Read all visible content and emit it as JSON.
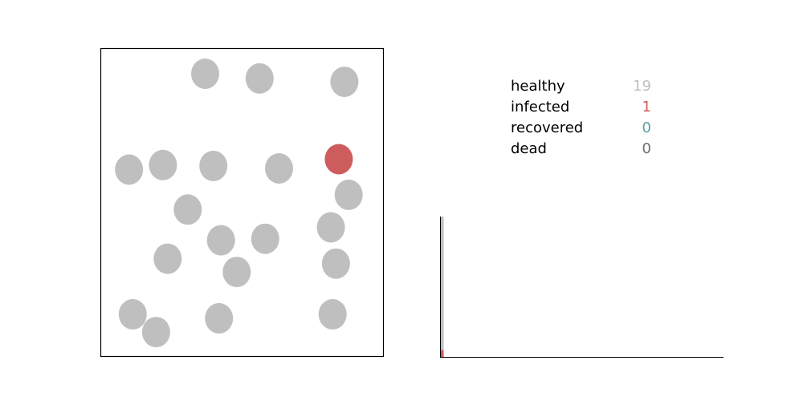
{
  "chart_data": [
    {
      "type": "scatter",
      "xlim": [
        0,
        1
      ],
      "ylim": [
        0,
        1
      ],
      "grid": false,
      "legend": "none",
      "points": [
        {
          "x": 0.369,
          "y": 0.919,
          "status": "healthy"
        },
        {
          "x": 0.562,
          "y": 0.904,
          "status": "healthy"
        },
        {
          "x": 0.863,
          "y": 0.893,
          "status": "healthy"
        },
        {
          "x": 0.843,
          "y": 0.641,
          "status": "infected"
        },
        {
          "x": 0.099,
          "y": 0.607,
          "status": "healthy"
        },
        {
          "x": 0.219,
          "y": 0.622,
          "status": "healthy"
        },
        {
          "x": 0.398,
          "y": 0.619,
          "status": "healthy"
        },
        {
          "x": 0.631,
          "y": 0.611,
          "status": "healthy"
        },
        {
          "x": 0.878,
          "y": 0.525,
          "status": "healthy"
        },
        {
          "x": 0.307,
          "y": 0.477,
          "status": "healthy"
        },
        {
          "x": 0.815,
          "y": 0.419,
          "status": "healthy"
        },
        {
          "x": 0.425,
          "y": 0.377,
          "status": "healthy"
        },
        {
          "x": 0.582,
          "y": 0.382,
          "status": "healthy"
        },
        {
          "x": 0.236,
          "y": 0.317,
          "status": "healthy"
        },
        {
          "x": 0.481,
          "y": 0.274,
          "status": "healthy"
        },
        {
          "x": 0.833,
          "y": 0.301,
          "status": "healthy"
        },
        {
          "x": 0.112,
          "y": 0.136,
          "status": "healthy"
        },
        {
          "x": 0.195,
          "y": 0.078,
          "status": "healthy"
        },
        {
          "x": 0.418,
          "y": 0.123,
          "status": "healthy"
        },
        {
          "x": 0.821,
          "y": 0.136,
          "status": "healthy"
        }
      ]
    },
    {
      "type": "area",
      "stacked": true,
      "x": [
        0,
        1
      ],
      "xlim": [
        0,
        100
      ],
      "ylim": [
        0,
        20
      ],
      "series": [
        {
          "values": [
            1,
            1
          ]
        },
        {
          "values": [
            19,
            19
          ]
        }
      ]
    }
  ],
  "stats": [
    {
      "label": "healthy",
      "value": "19"
    },
    {
      "label": "infected",
      "value": "1"
    },
    {
      "label": "recovered",
      "value": "0"
    },
    {
      "label": "dead",
      "value": "0"
    }
  ],
  "colors": {
    "healthy": "#bfbfbf",
    "infected": "#cd5c5c",
    "recovered": "#5f9ea0",
    "dead": "#707070",
    "axis": "#000000"
  }
}
